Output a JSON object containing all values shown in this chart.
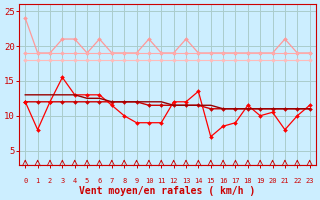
{
  "background_color": "#cceeff",
  "grid_color": "#aacccc",
  "xlabel": "Vent moyen/en rafales ( km/h )",
  "xlabel_color": "#cc0000",
  "xlabel_fontsize": 7,
  "tick_color": "#cc0000",
  "ytick_color": "#cc0000",
  "ylim": [
    3,
    26
  ],
  "xlim": [
    -0.5,
    23.5
  ],
  "yticks": [
    5,
    10,
    15,
    20,
    25
  ],
  "xticks": [
    0,
    1,
    2,
    3,
    4,
    5,
    6,
    7,
    8,
    9,
    10,
    11,
    12,
    13,
    14,
    15,
    16,
    17,
    18,
    19,
    20,
    21,
    22,
    23
  ],
  "lines": [
    {
      "y": [
        24,
        19,
        19,
        21,
        21,
        19,
        21,
        19,
        19,
        19,
        21,
        19,
        19,
        21,
        19,
        19,
        19,
        19,
        19,
        19,
        19,
        21,
        19,
        19
      ],
      "color": "#ff9999",
      "linewidth": 0.9,
      "marker": "D",
      "markersize": 2.0,
      "zorder": 3
    },
    {
      "y": [
        19,
        19,
        19,
        19,
        19,
        19,
        19,
        19,
        19,
        19,
        19,
        19,
        19,
        19,
        19,
        19,
        19,
        19,
        19,
        19,
        19,
        19,
        19,
        19
      ],
      "color": "#ffaaaa",
      "linewidth": 0.8,
      "marker": "D",
      "markersize": 2.0,
      "zorder": 3
    },
    {
      "y": [
        18,
        18,
        18,
        18,
        18,
        18,
        18,
        18,
        18,
        18,
        18,
        18,
        18,
        18,
        18,
        18,
        18,
        18,
        18,
        18,
        18,
        18,
        18,
        18
      ],
      "color": "#ffbbbb",
      "linewidth": 0.8,
      "marker": "D",
      "markersize": 2.0,
      "zorder": 3
    },
    {
      "y": [
        13,
        13,
        13,
        13,
        13,
        12.5,
        12.5,
        12,
        12,
        12,
        12,
        12,
        11.5,
        11.5,
        11.5,
        11.5,
        11,
        11,
        11,
        11,
        11,
        11,
        11,
        11
      ],
      "color": "#990000",
      "linewidth": 1.0,
      "marker": null,
      "markersize": 0,
      "zorder": 5
    },
    {
      "y": [
        12,
        12,
        12,
        12,
        12,
        12,
        12,
        12,
        12,
        12,
        11.5,
        11.5,
        11.5,
        11.5,
        11.5,
        11,
        11,
        11,
        11,
        11,
        11,
        11,
        11,
        11
      ],
      "color": "#cc0000",
      "linewidth": 1.0,
      "marker": "D",
      "markersize": 2.0,
      "zorder": 4
    },
    {
      "y": [
        12,
        8,
        12,
        15.5,
        13,
        13,
        13,
        11.5,
        10,
        9,
        9,
        9,
        12,
        12,
        13.5,
        7,
        8.5,
        9,
        11.5,
        10,
        10.5,
        8,
        10,
        11.5
      ],
      "color": "#ff0000",
      "linewidth": 0.9,
      "marker": "D",
      "markersize": 2.0,
      "zorder": 4
    }
  ]
}
